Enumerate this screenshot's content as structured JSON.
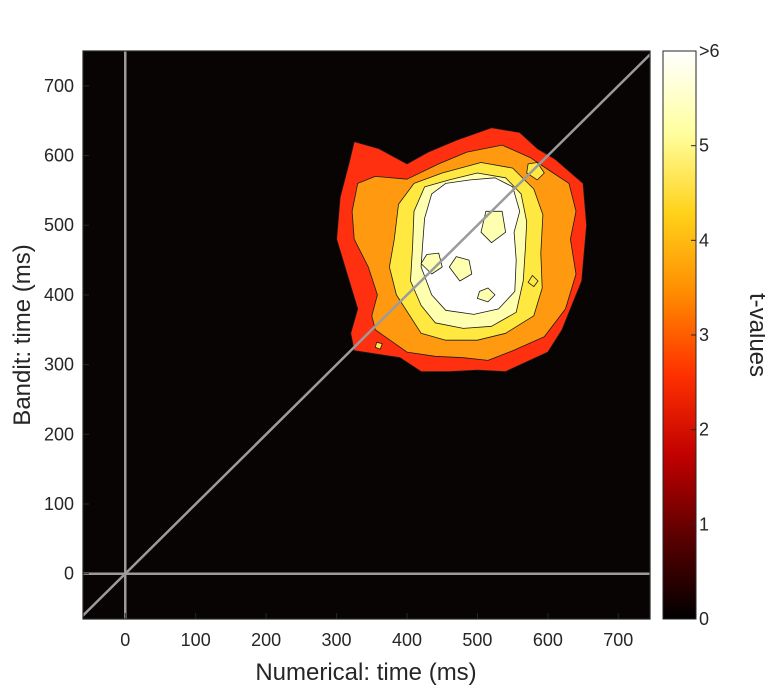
{
  "chart_data": {
    "type": "heatmap",
    "title": "",
    "xlabel": "Numerical: time (ms)",
    "ylabel": "Bandit: time (ms)",
    "xlim": [
      -60,
      745
    ],
    "ylim": [
      -65,
      750
    ],
    "x_ticks": [
      0,
      100,
      200,
      300,
      400,
      500,
      600,
      700
    ],
    "y_ticks": [
      0,
      100,
      200,
      300,
      400,
      500,
      600,
      700
    ],
    "grid": false,
    "reference_lines": {
      "x_zero": true,
      "y_zero": true,
      "diagonal": true,
      "color": "#9b9b9b"
    },
    "colorbar": {
      "label": "t-values",
      "range": [
        0,
        6
      ],
      "ticks": [
        {
          "value": 0,
          "label": "0"
        },
        {
          "value": 1,
          "label": "1"
        },
        {
          "value": 2,
          "label": "2"
        },
        {
          "value": 3,
          "label": "3"
        },
        {
          "value": 4,
          "label": "4"
        },
        {
          "value": 5,
          "label": "5"
        },
        {
          "value": 6,
          "label": ">6"
        }
      ],
      "colormap": [
        "#000000",
        "#5a0000",
        "#c00000",
        "#ff3000",
        "#ff8a00",
        "#ffd21a",
        "#ffffa0",
        "#ffffff"
      ]
    },
    "background_color": "#080404",
    "contour_levels": [
      {
        "level": 2.5,
        "color": "#ff3010",
        "polygon": [
          [
            325,
            320
          ],
          [
            390,
            310
          ],
          [
            420,
            290
          ],
          [
            460,
            290
          ],
          [
            500,
            292
          ],
          [
            540,
            290
          ],
          [
            600,
            318
          ],
          [
            620,
            350
          ],
          [
            648,
            420
          ],
          [
            655,
            500
          ],
          [
            650,
            560
          ],
          [
            610,
            595
          ],
          [
            585,
            610
          ],
          [
            560,
            633
          ],
          [
            520,
            640
          ],
          [
            470,
            622
          ],
          [
            430,
            605
          ],
          [
            400,
            588
          ],
          [
            360,
            610
          ],
          [
            325,
            620
          ],
          [
            318,
            590
          ],
          [
            305,
            540
          ],
          [
            300,
            480
          ],
          [
            315,
            430
          ],
          [
            330,
            380
          ],
          [
            320,
            345
          ]
        ]
      },
      {
        "level": 3,
        "color": "#ff9a10",
        "polygon": [
          [
            355,
            350
          ],
          [
            400,
            318
          ],
          [
            440,
            312
          ],
          [
            480,
            310
          ],
          [
            515,
            306
          ],
          [
            550,
            320
          ],
          [
            595,
            340
          ],
          [
            625,
            380
          ],
          [
            640,
            430
          ],
          [
            632,
            480
          ],
          [
            640,
            520
          ],
          [
            630,
            560
          ],
          [
            600,
            580
          ],
          [
            575,
            597
          ],
          [
            535,
            615
          ],
          [
            485,
            605
          ],
          [
            445,
            588
          ],
          [
            400,
            566
          ],
          [
            355,
            570
          ],
          [
            330,
            560
          ],
          [
            322,
            520
          ],
          [
            325,
            480
          ],
          [
            345,
            440
          ],
          [
            358,
            400
          ],
          [
            350,
            370
          ]
        ]
      },
      {
        "level": 4,
        "color": "#ffe840",
        "polygon": [
          [
            385,
            400
          ],
          [
            420,
            345
          ],
          [
            455,
            335
          ],
          [
            500,
            335
          ],
          [
            540,
            345
          ],
          [
            580,
            370
          ],
          [
            592,
            410
          ],
          [
            590,
            460
          ],
          [
            593,
            515
          ],
          [
            580,
            552
          ],
          [
            550,
            582
          ],
          [
            505,
            590
          ],
          [
            450,
            575
          ],
          [
            410,
            560
          ],
          [
            388,
            530
          ],
          [
            382,
            480
          ],
          [
            375,
            440
          ]
        ]
      },
      {
        "level": 5,
        "color": "#ffffb0",
        "polygon": [
          [
            405,
            420
          ],
          [
            420,
            385
          ],
          [
            440,
            360
          ],
          [
            480,
            352
          ],
          [
            520,
            355
          ],
          [
            555,
            375
          ],
          [
            565,
            420
          ],
          [
            568,
            465
          ],
          [
            570,
            505
          ],
          [
            562,
            545
          ],
          [
            540,
            568
          ],
          [
            500,
            575
          ],
          [
            460,
            565
          ],
          [
            425,
            555
          ],
          [
            410,
            520
          ],
          [
            408,
            470
          ]
        ]
      },
      {
        "level": 6,
        "color": "#ffffff",
        "polygon": [
          [
            420,
            440
          ],
          [
            435,
            400
          ],
          [
            455,
            378
          ],
          [
            495,
            372
          ],
          [
            530,
            380
          ],
          [
            553,
            405
          ],
          [
            555,
            450
          ],
          [
            552,
            490
          ],
          [
            560,
            520
          ],
          [
            550,
            555
          ],
          [
            525,
            568
          ],
          [
            490,
            565
          ],
          [
            455,
            560
          ],
          [
            435,
            545
          ],
          [
            425,
            510
          ],
          [
            422,
            470
          ]
        ]
      }
    ],
    "inner_islands": [
      {
        "color": "#ffffb0",
        "polygon": [
          [
            420,
            445
          ],
          [
            435,
            430
          ],
          [
            450,
            440
          ],
          [
            445,
            460
          ],
          [
            428,
            458
          ]
        ]
      },
      {
        "color": "#ffffb0",
        "polygon": [
          [
            460,
            440
          ],
          [
            475,
            420
          ],
          [
            492,
            430
          ],
          [
            488,
            450
          ],
          [
            470,
            455
          ]
        ]
      },
      {
        "color": "#ffffb0",
        "polygon": [
          [
            500,
            395
          ],
          [
            515,
            390
          ],
          [
            525,
            400
          ],
          [
            515,
            410
          ],
          [
            503,
            405
          ]
        ]
      },
      {
        "color": "#ffffb0",
        "polygon": [
          [
            505,
            490
          ],
          [
            520,
            475
          ],
          [
            540,
            490
          ],
          [
            535,
            520
          ],
          [
            512,
            520
          ]
        ]
      }
    ],
    "small_patches": [
      {
        "color": "#ffe840",
        "polygon": [
          [
            570,
            575
          ],
          [
            585,
            565
          ],
          [
            595,
            575
          ],
          [
            585,
            590
          ],
          [
            572,
            588
          ]
        ]
      },
      {
        "color": "#ffe840",
        "polygon": [
          [
            355,
            325
          ],
          [
            362,
            322
          ],
          [
            365,
            330
          ],
          [
            357,
            332
          ]
        ]
      },
      {
        "color": "#ffe840",
        "polygon": [
          [
            572,
            418
          ],
          [
            580,
            412
          ],
          [
            586,
            420
          ],
          [
            578,
            428
          ]
        ]
      }
    ]
  }
}
